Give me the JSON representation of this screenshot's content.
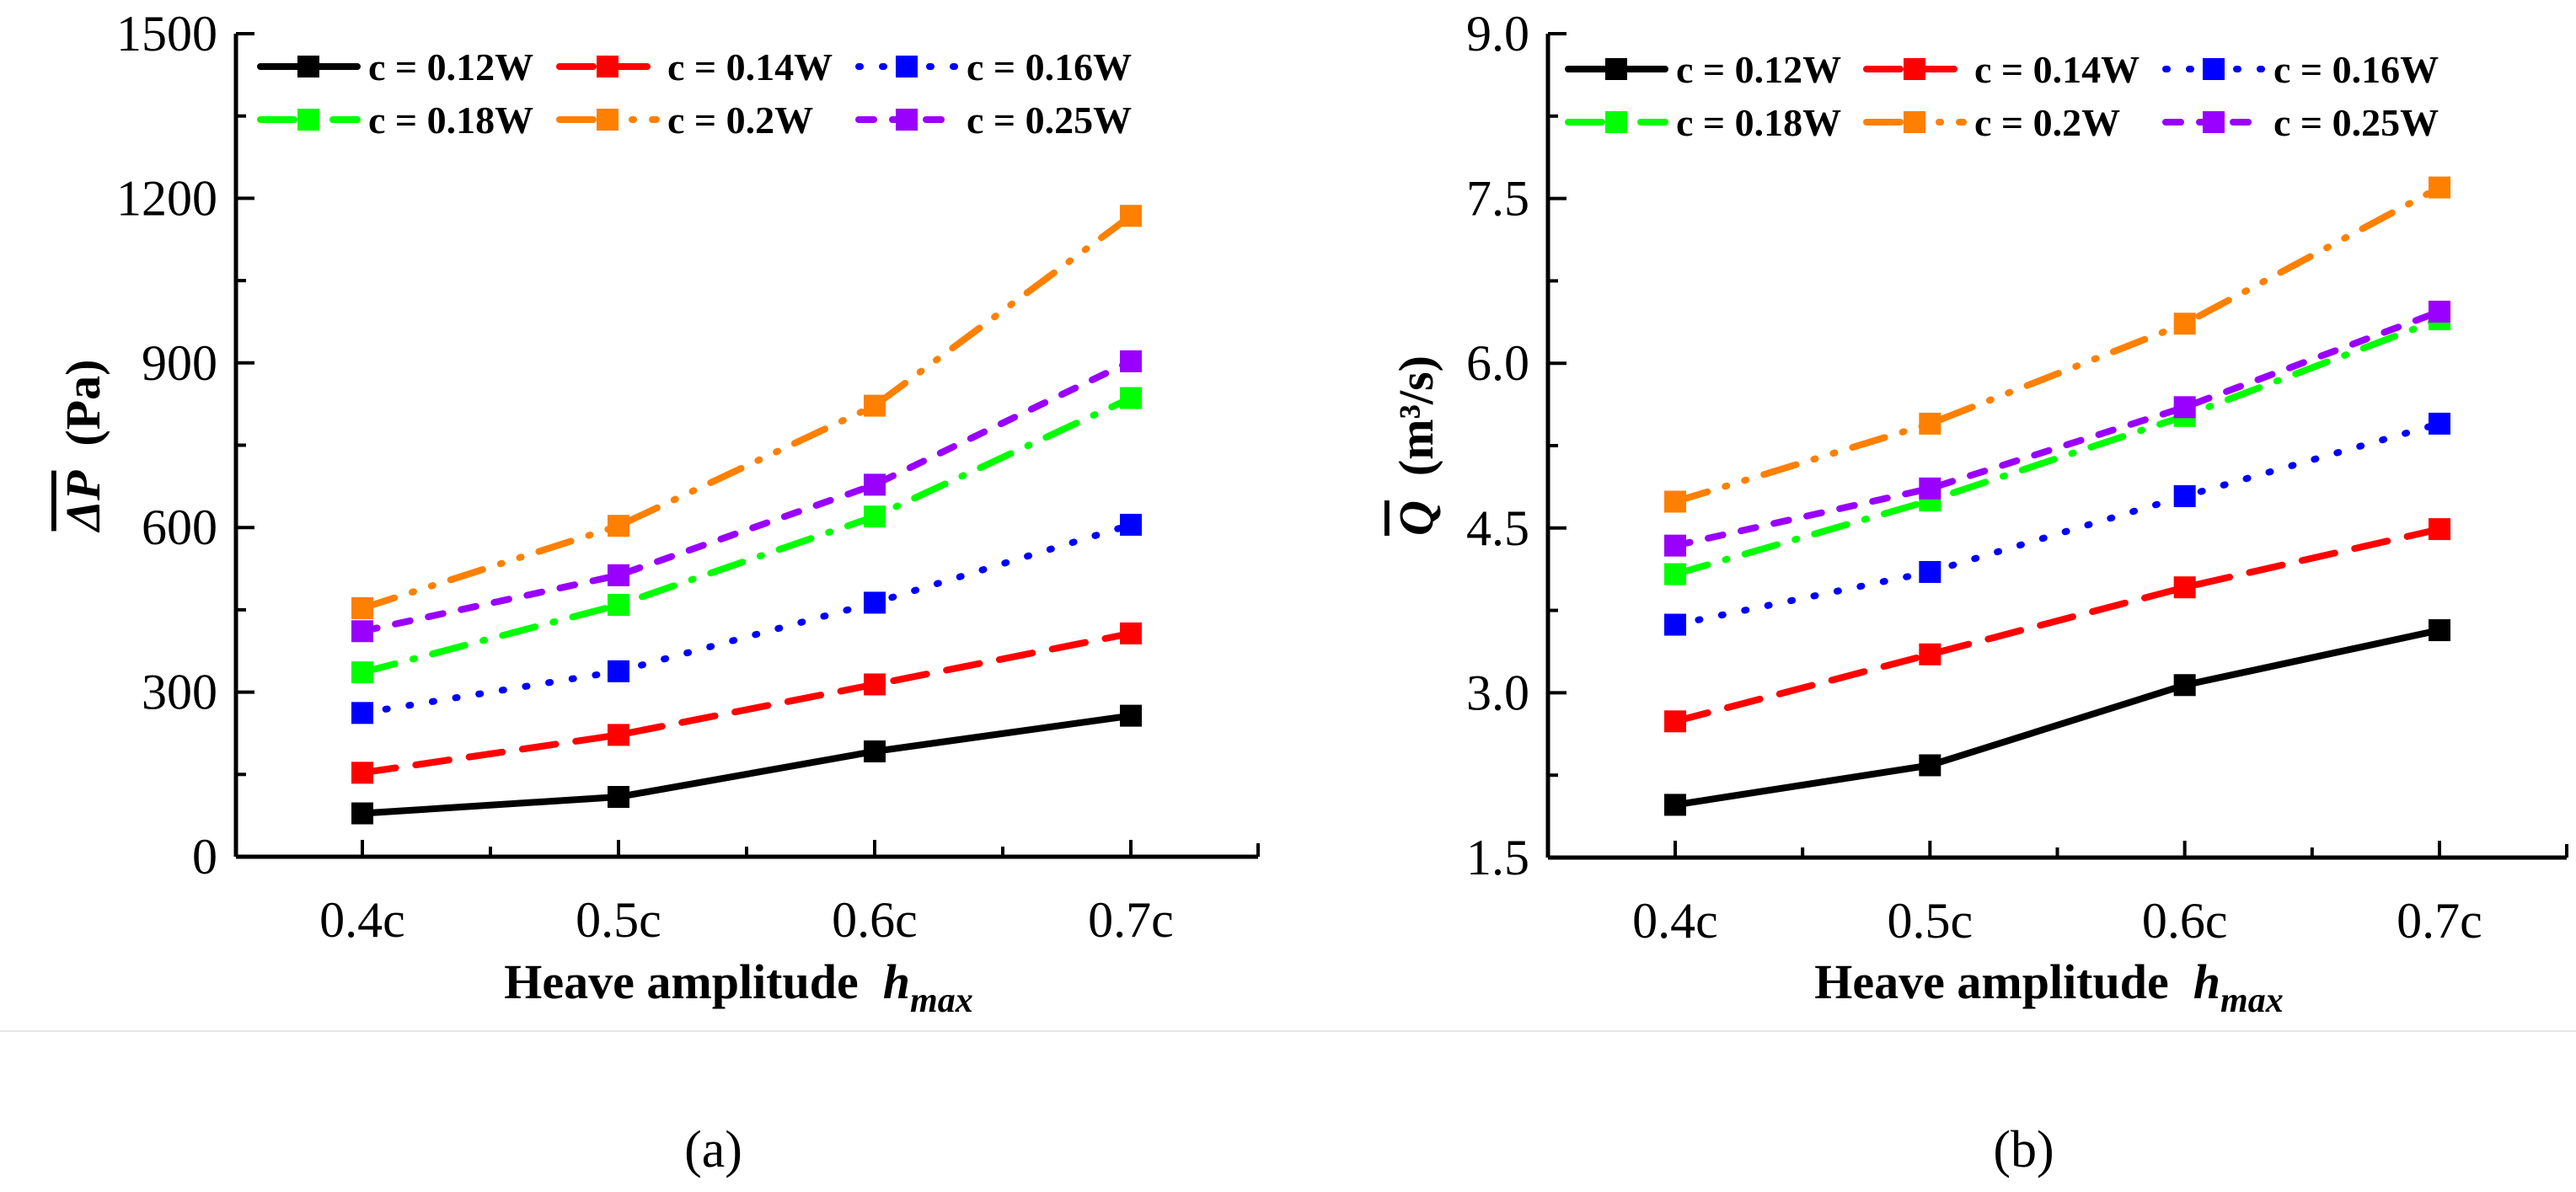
{
  "chart_data": [
    {
      "type": "line",
      "panel_label": "(a)",
      "ylabel_symbol": "ΔP",
      "ylabel_unit": "(Pa)",
      "xlabel": "Heave amplitude",
      "xlabel_symbol": "h",
      "xlabel_sub": "max",
      "categories": [
        "0.4c",
        "0.5c",
        "0.6c",
        "0.7c"
      ],
      "ylim": [
        0,
        1500
      ],
      "yticks": [
        "0",
        "300",
        "600",
        "900",
        "1200",
        "1500"
      ],
      "ytick_values": [
        0,
        300,
        600,
        900,
        1200,
        1500
      ],
      "legend_position": "top",
      "series": [
        {
          "name": "c = 0.12W",
          "color": "#000000",
          "style": "solid",
          "values": [
            79,
            109,
            192,
            257
          ]
        },
        {
          "name": "c = 0.14W",
          "color": "#ff0000",
          "style": "dash",
          "values": [
            153,
            222,
            314,
            407
          ]
        },
        {
          "name": "c = 0.16W",
          "color": "#0000ff",
          "style": "dot",
          "values": [
            262,
            338,
            463,
            605
          ]
        },
        {
          "name": "c = 0.18W",
          "color": "#00ff00",
          "style": "dashdot",
          "values": [
            336,
            459,
            620,
            836
          ]
        },
        {
          "name": "c = 0.2W",
          "color": "#ff8000",
          "style": "dashdotdot",
          "values": [
            453,
            603,
            822,
            1168
          ]
        },
        {
          "name": "c = 0.25W",
          "color": "#9900ff",
          "style": "shortdash",
          "values": [
            411,
            513,
            678,
            903
          ]
        }
      ]
    },
    {
      "type": "line",
      "panel_label": "(b)",
      "ylabel_symbol": "Q",
      "ylabel_unit": "(m³/s)",
      "xlabel": "Heave amplitude",
      "xlabel_symbol": "h",
      "xlabel_sub": "max",
      "categories": [
        "0.4c",
        "0.5c",
        "0.6c",
        "0.7c"
      ],
      "ylim": [
        1.5,
        9.0
      ],
      "yticks": [
        "1.5",
        "3.0",
        "4.5",
        "6.0",
        "7.5",
        "9.0"
      ],
      "ytick_values": [
        1.5,
        3.0,
        4.5,
        6.0,
        7.5,
        9.0
      ],
      "legend_position": "top",
      "series": [
        {
          "name": "c = 0.12W",
          "color": "#000000",
          "style": "solid",
          "values": [
            1.98,
            2.34,
            3.07,
            3.57
          ]
        },
        {
          "name": "c = 0.14W",
          "color": "#ff0000",
          "style": "dash",
          "values": [
            2.74,
            3.35,
            3.96,
            4.49
          ]
        },
        {
          "name": "c = 0.16W",
          "color": "#0000ff",
          "style": "dot",
          "values": [
            3.62,
            4.1,
            4.79,
            5.45
          ]
        },
        {
          "name": "c = 0.18W",
          "color": "#00ff00",
          "style": "dashdot",
          "values": [
            4.08,
            4.75,
            5.52,
            6.4
          ]
        },
        {
          "name": "c = 0.2W",
          "color": "#ff8000",
          "style": "dashdotdot",
          "values": [
            4.74,
            5.45,
            6.36,
            7.6
          ]
        },
        {
          "name": "c = 0.25W",
          "color": "#9900ff",
          "style": "shortdash",
          "values": [
            4.34,
            4.86,
            5.6,
            6.47
          ]
        }
      ]
    }
  ]
}
